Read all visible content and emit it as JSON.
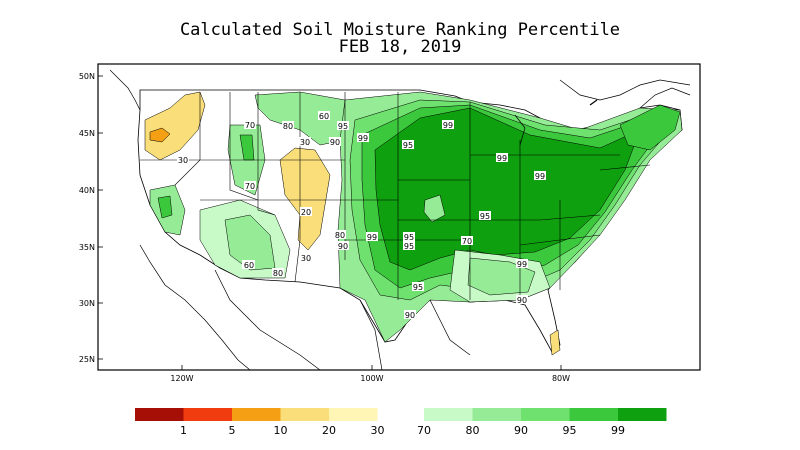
{
  "title": "Calculated Soil Moisture Ranking Percentile",
  "date": "FEB 18, 2019",
  "lat_ticks": [
    "50N",
    "45N",
    "40N",
    "35N",
    "30N",
    "25N"
  ],
  "lon_ticks": [
    "120W",
    "100W",
    "80W"
  ],
  "contour_labels": [
    "30",
    "20",
    "30",
    "70",
    "80",
    "60",
    "70",
    "80",
    "90",
    "95",
    "99",
    "95",
    "99",
    "99",
    "99",
    "95",
    "90",
    "99",
    "95",
    "95",
    "90",
    "99",
    "90",
    "95",
    "90",
    "80",
    "70",
    "60",
    "30"
  ],
  "legend": {
    "dry": [
      {
        "color": "#a50f05",
        "label": "1"
      },
      {
        "color": "#f03c0f",
        "label": "5"
      },
      {
        "color": "#f5a014",
        "label": "10"
      },
      {
        "color": "#fade7a",
        "label": "20"
      },
      {
        "color": "#fff5b4",
        "label": "30"
      }
    ],
    "wet": [
      {
        "color": "#c8fac8",
        "label": "70"
      },
      {
        "color": "#96eb96",
        "label": "80"
      },
      {
        "color": "#6ee16e",
        "label": "90"
      },
      {
        "color": "#3cc83c",
        "label": "95"
      },
      {
        "color": "#0fa00f",
        "label": "99"
      }
    ]
  }
}
